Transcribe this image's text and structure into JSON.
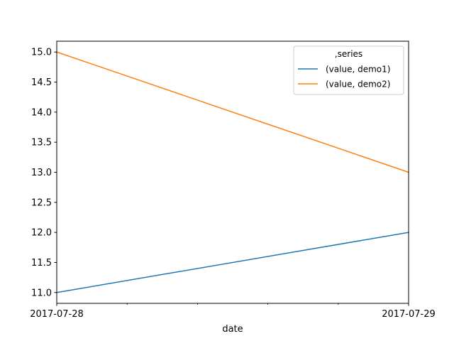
{
  "chart_data": {
    "type": "line",
    "title": "",
    "xlabel": "date",
    "ylabel": "",
    "x": [
      "2017-07-28",
      "2017-07-29"
    ],
    "xlim": [
      "2017-07-28",
      "2017-07-29"
    ],
    "x_tick_labels": [
      "2017-07-28",
      "2017-07-29"
    ],
    "x_minor_ticks": 4,
    "ylim": [
      10.82,
      15.18
    ],
    "y_ticks": [
      11.0,
      11.5,
      12.0,
      12.5,
      13.0,
      13.5,
      14.0,
      14.5,
      15.0
    ],
    "y_tick_labels": [
      "11.0",
      "11.5",
      "12.0",
      "12.5",
      "13.0",
      "13.5",
      "14.0",
      "14.5",
      "15.0"
    ],
    "grid": false,
    "legend": {
      "title": ",series",
      "placement": "top-right"
    },
    "series": [
      {
        "name": "(value, demo1)",
        "color": "#1f77b4",
        "values": [
          11.0,
          12.0
        ]
      },
      {
        "name": "(value, demo2)",
        "color": "#ff7f0e",
        "values": [
          15.0,
          13.0
        ]
      }
    ]
  }
}
